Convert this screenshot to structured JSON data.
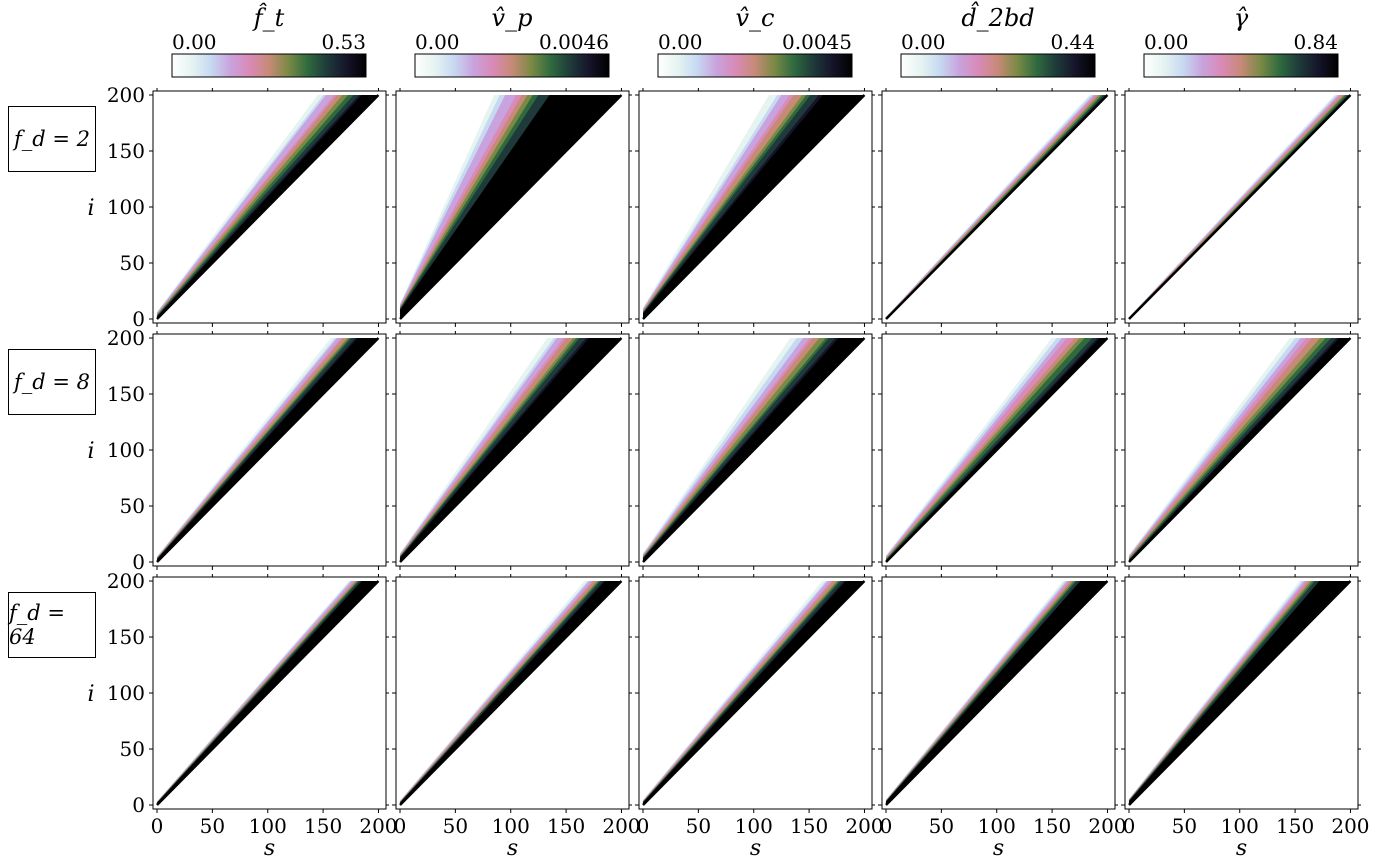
{
  "chart_data": {
    "type": "heatmap",
    "description_grid": "3 rows x 5 columns of triangular heatmaps; axes s (x) and i (y)",
    "xlabel": "s",
    "ylabel": "i",
    "xlim": [
      0,
      205
    ],
    "ylim": [
      0,
      200
    ],
    "xticks": [
      "0",
      "50",
      "100",
      "150",
      "200"
    ],
    "yticks": [
      "0",
      "50",
      "100",
      "150",
      "200"
    ],
    "colormap": "cubehelix-like (white → light blue → pink → green → black)",
    "columns": [
      {
        "title": "f̂_t",
        "vmin": "0.00",
        "vmax": "0.53"
      },
      {
        "title": "v̂_p",
        "vmin": "0.00",
        "vmax": "0.0046"
      },
      {
        "title": "v̂_c",
        "vmin": "0.00",
        "vmax": "0.0045"
      },
      {
        "title": "d̂_2bd",
        "vmin": "0.00",
        "vmax": "0.44"
      },
      {
        "title": "γ̂",
        "vmin": "0.00",
        "vmax": "0.84"
      }
    ],
    "rows": [
      {
        "label": "f_d = 2"
      },
      {
        "label": "f_d = 8"
      },
      {
        "label": "f_d = 64"
      }
    ]
  },
  "colors": {
    "cmap": [
      "#ffffff",
      "#e6f4f1",
      "#c7d9f2",
      "#c8a3dd",
      "#d98ab7",
      "#c78a77",
      "#7a8a45",
      "#2f6a3f",
      "#1e3a3a",
      "#15142a",
      "#000000"
    ]
  }
}
